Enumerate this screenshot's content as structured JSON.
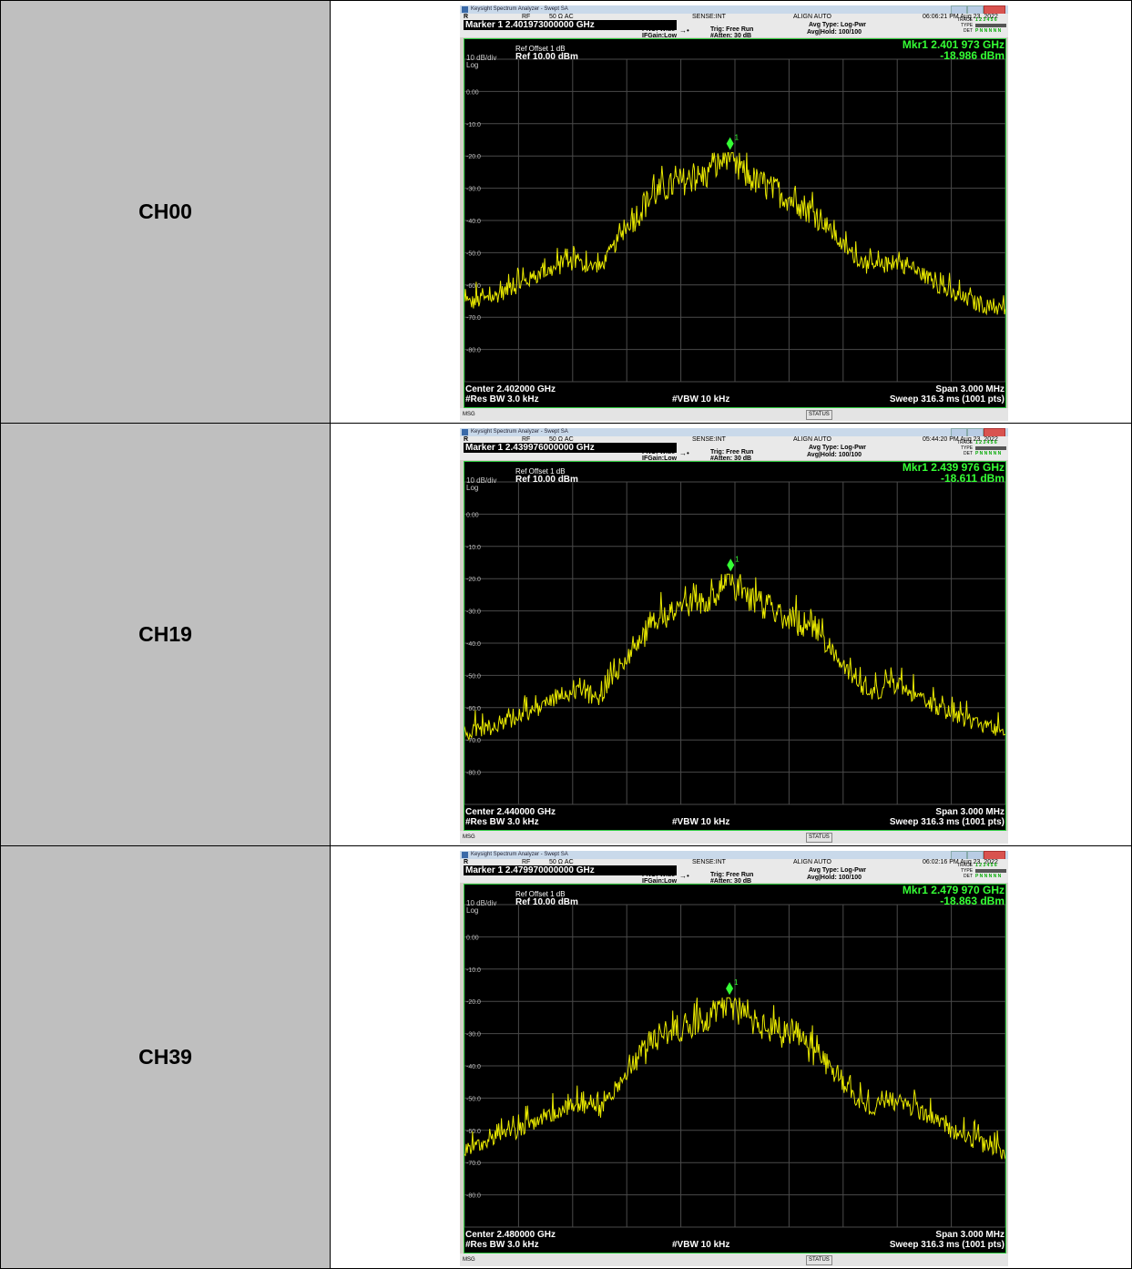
{
  "rows": [
    {
      "channel": "CH00",
      "analyzer": {
        "window_title": "Keysight Spectrum Analyzer - Swept SA",
        "mode_r": "R",
        "rf": "RF",
        "impedance": "50 Ω  AC",
        "sense": "SENSE:INT",
        "align": "ALIGN AUTO",
        "timestamp": "06:06:21 PM Aug 23, 2022",
        "marker_line": "Marker 1 2.401973000000 GHz",
        "pno": "PNO: Wide",
        "ifgain": "IFGain:Low",
        "trig": "Trig: Free Run",
        "atten": "#Atten: 30 dB",
        "avg_type": "Avg Type: Log-Pwr",
        "avg_hold": "Avg|Hold: 100/100",
        "trace_label": "TRACE",
        "type_label": "TYPE",
        "det_label": "DET",
        "trace_digits": "1 2 3 4 5 6",
        "det_value": "P N N N N N",
        "ref_offset": "Ref Offset 1 dB",
        "scale": "10 dB/div",
        "scale_type": "Log",
        "ref_level": "Ref 10.00 dBm",
        "mkr_freq": "Mkr1 2.401 973 GHz",
        "mkr_level": "-18.986 dBm",
        "marker_number": "1",
        "center": "Center 2.402000 GHz",
        "span": "Span 3.000 MHz",
        "res_bw": "#Res BW 3.0 kHz",
        "vbw": "#VBW 10 kHz",
        "sweep": "Sweep  316.3 ms (1001 pts)",
        "msg": "MSG",
        "status": "STATUS"
      },
      "chart_data": {
        "type": "line",
        "x_unit": "MHz from center",
        "xlim": [
          -1.5,
          1.5
        ],
        "ylim": [
          -90,
          10
        ],
        "y_ticks": [
          "0.00",
          "-10.0",
          "-20.0",
          "-30.0",
          "-40.0",
          "-50.0",
          "-60.0",
          "-70.0",
          "-80.0"
        ],
        "marker": {
          "x": -0.027,
          "y": -18.986
        },
        "series": [
          {
            "x": [
              -1.5,
              -1.35,
              -1.2,
              -1.05,
              -0.9,
              -0.75,
              -0.6,
              -0.45,
              -0.3,
              -0.15,
              -0.03,
              0.0,
              0.15,
              0.3,
              0.45,
              0.6,
              0.75,
              0.9,
              1.05,
              1.2,
              1.35,
              1.5
            ],
            "values": [
              -66,
              -64,
              -60,
              -56,
              -53,
              -55,
              -42,
              -32,
              -28,
              -26,
              -19,
              -24,
              -29,
              -33,
              -38,
              -48,
              -55,
              -53,
              -57,
              -63,
              -66,
              -68
            ]
          }
        ]
      }
    },
    {
      "channel": "CH19",
      "analyzer": {
        "window_title": "Keysight Spectrum Analyzer - Swept SA",
        "mode_r": "R",
        "rf": "RF",
        "impedance": "50 Ω  AC",
        "sense": "SENSE:INT",
        "align": "ALIGN AUTO",
        "timestamp": "05:44:20 PM Aug 23, 2022",
        "marker_line": "Marker 1 2.439976000000 GHz",
        "pno": "PNO: Wide",
        "ifgain": "IFGain:Low",
        "trig": "Trig: Free Run",
        "atten": "#Atten: 30 dB",
        "avg_type": "Avg Type: Log-Pwr",
        "avg_hold": "Avg|Hold: 100/100",
        "trace_label": "TRACE",
        "type_label": "TYPE",
        "det_label": "DET",
        "trace_digits": "1 2 3 4 5 6",
        "det_value": "P N N N N N",
        "ref_offset": "Ref Offset 1 dB",
        "scale": "10 dB/div",
        "scale_type": "Log",
        "ref_level": "Ref 10.00 dBm",
        "mkr_freq": "Mkr1 2.439 976 GHz",
        "mkr_level": "-18.611 dBm",
        "marker_number": "1",
        "center": "Center 2.440000 GHz",
        "span": "Span 3.000 MHz",
        "res_bw": "#Res BW 3.0 kHz",
        "vbw": "#VBW 10 kHz",
        "sweep": "Sweep  316.3 ms (1001 pts)",
        "msg": "MSG",
        "status": "STATUS"
      },
      "chart_data": {
        "type": "line",
        "x_unit": "MHz from center",
        "xlim": [
          -1.5,
          1.5
        ],
        "ylim": [
          -90,
          10
        ],
        "y_ticks": [
          "0.00",
          "-10.0",
          "-20.0",
          "-30.0",
          "-40.0",
          "-50.0",
          "-60.0",
          "-70.0",
          "-80.0"
        ],
        "marker": {
          "x": -0.024,
          "y": -18.611
        },
        "series": [
          {
            "x": [
              -1.5,
              -1.35,
              -1.2,
              -1.05,
              -0.9,
              -0.75,
              -0.6,
              -0.45,
              -0.3,
              -0.15,
              -0.03,
              0.0,
              0.15,
              0.3,
              0.45,
              0.6,
              0.75,
              0.9,
              1.05,
              1.2,
              1.35,
              1.5
            ],
            "values": [
              -68,
              -66,
              -63,
              -59,
              -55,
              -57,
              -45,
              -33,
              -29,
              -27,
              -19,
              -23,
              -28,
              -32,
              -36,
              -47,
              -56,
              -53,
              -58,
              -62,
              -65,
              -67
            ]
          }
        ]
      }
    },
    {
      "channel": "CH39",
      "analyzer": {
        "window_title": "Keysight Spectrum Analyzer - Swept SA",
        "mode_r": "R",
        "rf": "RF",
        "impedance": "50 Ω  AC",
        "sense": "SENSE:INT",
        "align": "ALIGN AUTO",
        "timestamp": "06:02:16 PM Aug 23, 2022",
        "marker_line": "Marker 1 2.479970000000 GHz",
        "pno": "PNO: Wide",
        "ifgain": "IFGain:Low",
        "trig": "Trig: Free Run",
        "atten": "#Atten: 30 dB",
        "avg_type": "Avg Type: Log-Pwr",
        "avg_hold": "Avg|Hold: 100/100",
        "trace_label": "TRACE",
        "type_label": "TYPE",
        "det_label": "DET",
        "trace_digits": "1 2 3 4 5 6",
        "det_value": "P N N N N N",
        "ref_offset": "Ref Offset 1 dB",
        "scale": "10 dB/div",
        "scale_type": "Log",
        "ref_level": "Ref 10.00 dBm",
        "mkr_freq": "Mkr1 2.479 970 GHz",
        "mkr_level": "-18.863 dBm",
        "marker_number": "1",
        "center": "Center 2.480000 GHz",
        "span": "Span 3.000 MHz",
        "res_bw": "#Res BW 3.0 kHz",
        "vbw": "#VBW 10 kHz",
        "sweep": "Sweep  316.3 ms (1001 pts)",
        "msg": "MSG",
        "status": "STATUS"
      },
      "chart_data": {
        "type": "line",
        "x_unit": "MHz from center",
        "xlim": [
          -1.5,
          1.5
        ],
        "ylim": [
          -90,
          10
        ],
        "y_ticks": [
          "0.00",
          "-10.0",
          "-20.0",
          "-30.0",
          "-40.0",
          "-50.0",
          "-60.0",
          "-70.0",
          "-80.0"
        ],
        "marker": {
          "x": -0.03,
          "y": -18.863
        },
        "series": [
          {
            "x": [
              -1.5,
              -1.35,
              -1.2,
              -1.05,
              -0.9,
              -0.75,
              -0.6,
              -0.45,
              -0.3,
              -0.15,
              -0.03,
              0.0,
              0.15,
              0.3,
              0.45,
              0.6,
              0.75,
              0.9,
              1.05,
              1.2,
              1.35,
              1.5
            ],
            "values": [
              -66,
              -63,
              -60,
              -56,
              -52,
              -54,
              -42,
              -32,
              -28,
              -25,
              -19,
              -23,
              -28,
              -31,
              -36,
              -46,
              -54,
              -51,
              -55,
              -60,
              -64,
              -67
            ]
          }
        ]
      }
    }
  ],
  "colors": {
    "trace": "#e8e800",
    "marker": "#35ff35",
    "grid": "#4a4a4a",
    "frame": "#2ecc40"
  }
}
